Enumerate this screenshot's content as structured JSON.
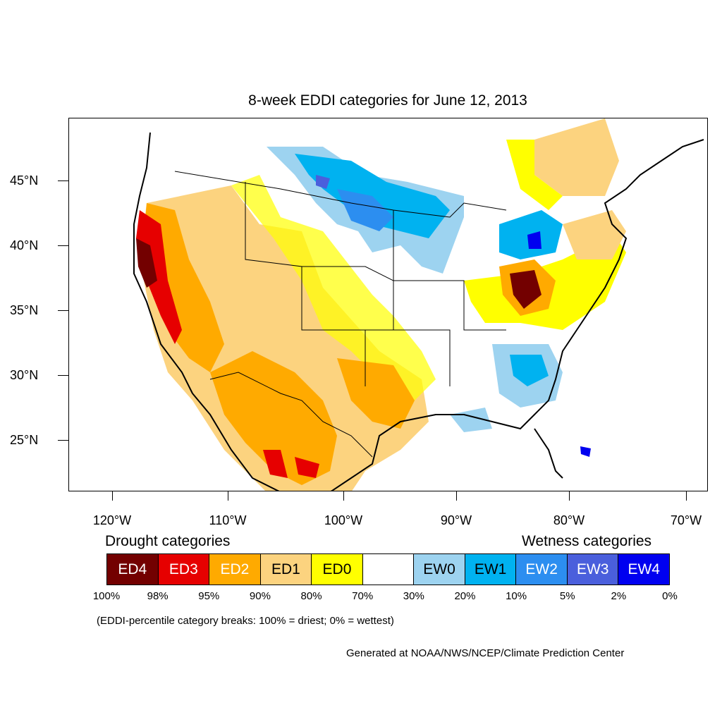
{
  "title": "8-week EDDI categories for June 12, 2013",
  "lat_labels": [
    "45°N",
    "40°N",
    "35°N",
    "30°N",
    "25°N"
  ],
  "lon_labels": [
    "120°W",
    "110°W",
    "100°W",
    "90°W",
    "80°W",
    "70°W"
  ],
  "legend": {
    "drought_heading": "Drought categories",
    "wetness_heading": "Wetness categories",
    "categories": [
      {
        "label": "ED4",
        "color": "#730000",
        "text_color": "#ffffff"
      },
      {
        "label": "ED3",
        "color": "#e60000",
        "text_color": "#ffffff"
      },
      {
        "label": "ED2",
        "color": "#ffaa00",
        "text_color": "#ffffff"
      },
      {
        "label": "ED1",
        "color": "#fcd37f",
        "text_color": "#000000"
      },
      {
        "label": "ED0",
        "color": "#ffff00",
        "text_color": "#000000"
      },
      {
        "label": "",
        "color": "#ffffff",
        "text_color": "#000000"
      },
      {
        "label": "EW0",
        "color": "#9dd3f0",
        "text_color": "#000000"
      },
      {
        "label": "EW1",
        "color": "#00b2f0",
        "text_color": "#000000"
      },
      {
        "label": "EW2",
        "color": "#2c8ef0",
        "text_color": "#ffffff"
      },
      {
        "label": "EW3",
        "color": "#4a5fdc",
        "text_color": "#ffffff"
      },
      {
        "label": "EW4",
        "color": "#0000f0",
        "text_color": "#ffffff"
      }
    ],
    "percentiles": [
      "100%",
      "98%",
      "95%",
      "90%",
      "80%",
      "70%",
      "30%",
      "20%",
      "10%",
      "5%",
      "2%",
      "0%"
    ]
  },
  "note": "(EDDI-percentile category breaks: 100% = driest; 0% = wettest)",
  "credit": "Generated at NOAA/NWS/NCEP/Climate Prediction Center"
}
